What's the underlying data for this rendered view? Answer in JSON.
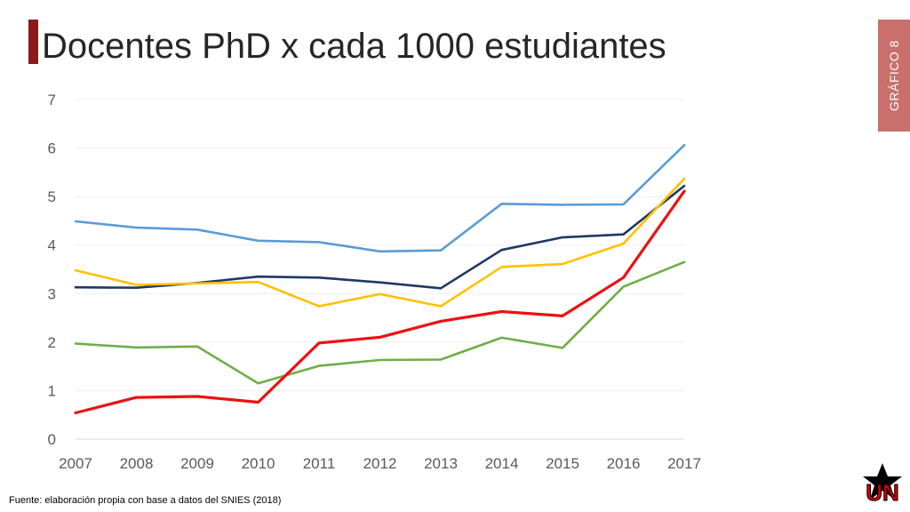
{
  "header": {
    "title": "Docentes PhD x cada 1000 estudiantes",
    "badge": "GRÁFICO 8"
  },
  "footer": {
    "source": "Fuente: elaboración propia con base a datos del SNIES (2018)"
  },
  "logo": {
    "text": "UN",
    "color": "#d40000",
    "icon": "university-star-logo-icon"
  },
  "chart_data": {
    "type": "line",
    "title": "Docentes PhD x cada 1000 estudiantes",
    "xlabel": "",
    "ylabel": "",
    "ylim": [
      0,
      7
    ],
    "grid": true,
    "legend": "none",
    "categories": [
      "2007",
      "2008",
      "2009",
      "2010",
      "2011",
      "2012",
      "2013",
      "2014",
      "2015",
      "2016",
      "2017"
    ],
    "y_ticks": [
      "0",
      "1",
      "2",
      "3",
      "4",
      "5",
      "6",
      "7"
    ],
    "series": [
      {
        "color": "#5b9bd5",
        "values": [
          4.49,
          4.36,
          4.32,
          4.09,
          4.06,
          3.87,
          3.89,
          4.85,
          4.83,
          4.84,
          6.06
        ]
      },
      {
        "color": "#1f3864",
        "values": [
          3.13,
          3.12,
          3.22,
          3.35,
          3.33,
          3.23,
          3.11,
          3.9,
          4.16,
          4.22,
          5.22
        ]
      },
      {
        "color": "#ffc000",
        "values": [
          3.48,
          3.18,
          3.21,
          3.24,
          2.74,
          2.99,
          2.74,
          3.55,
          3.61,
          4.03,
          5.37
        ]
      },
      {
        "color": "#70ad47",
        "values": [
          1.97,
          1.89,
          1.91,
          1.15,
          1.51,
          1.63,
          1.64,
          2.09,
          1.88,
          3.14,
          3.65
        ]
      },
      {
        "color": "#ee1010",
        "values": [
          0.54,
          0.86,
          0.88,
          0.76,
          1.98,
          2.1,
          2.43,
          2.63,
          2.54,
          3.33,
          5.11
        ]
      }
    ]
  }
}
